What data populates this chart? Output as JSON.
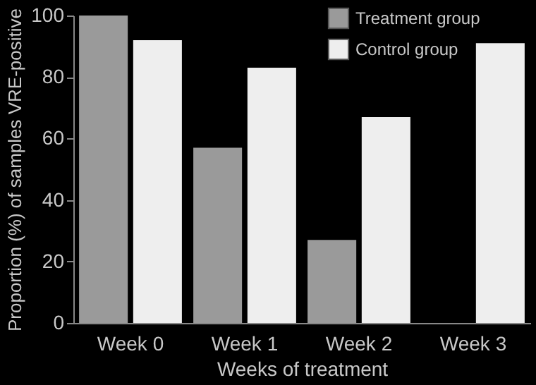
{
  "chart_data": {
    "type": "bar",
    "xlabel": "Weeks of treatment",
    "ylabel": "Proportion (%) of samples VRE-positive",
    "categories": [
      "Week 0",
      "Week 1",
      "Week 2",
      "Week 3"
    ],
    "series": [
      {
        "name": "Treatment group",
        "color": "#9a9a9a",
        "values": [
          100,
          57,
          27,
          0
        ]
      },
      {
        "name": "Control group",
        "color": "#eeeeee",
        "values": [
          92,
          83,
          67,
          91
        ]
      }
    ],
    "ylim": [
      0,
      100
    ],
    "yticks": [
      0,
      20,
      40,
      60,
      80,
      100
    ],
    "grid": false,
    "legend": "top right"
  }
}
